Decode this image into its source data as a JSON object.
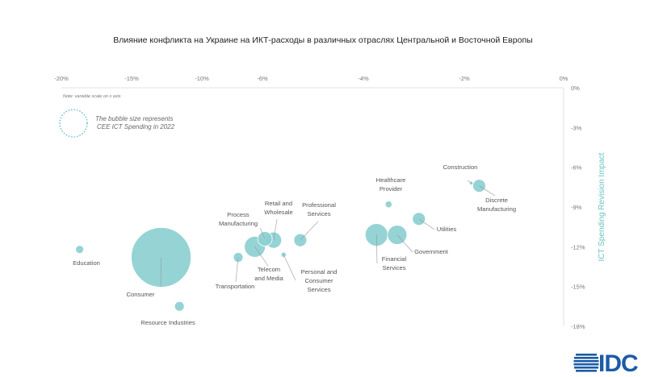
{
  "chart_data": {
    "type": "scatter",
    "subtype": "bubble",
    "title": "Влияние конфликта на Украине на ИКТ-расходы в различных отраслях Центральной и Восточной Европы",
    "ylabel": "ICT Spending Revision Impact",
    "xlabel": "",
    "note": "Note: variable scale on x axis",
    "legend_text": [
      "The bubble size represents",
      "CEE ICT Spending in 2022"
    ],
    "x_scale": "piecewise (variable)",
    "x_ticks": [
      -20,
      -15,
      -10,
      -6,
      -4,
      -2,
      0
    ],
    "x_tick_labels": [
      "-20%",
      "-15%",
      "-10%",
      "-6%",
      "-4%",
      "-2%",
      "0%"
    ],
    "y_ticks": [
      0,
      -3,
      -6,
      -9,
      -12,
      -15,
      -18
    ],
    "y_tick_labels": [
      "0%",
      "-3%",
      "-6%",
      "-9%",
      "-12%",
      "-15%",
      "-18%"
    ],
    "xlim": [
      -20,
      0
    ],
    "ylim": [
      -18,
      0
    ],
    "grid": false,
    "bubble_color": "#8ccfd1",
    "points": [
      {
        "label": [
          "Education"
        ],
        "x": -18.7,
        "y": -12.2,
        "size": 25
      },
      {
        "label": [
          "Consumer"
        ],
        "x": -12.9,
        "y": -12.8,
        "size": 1370
      },
      {
        "label": [
          "Resource Industries"
        ],
        "x": -11.6,
        "y": -16.5,
        "size": 36
      },
      {
        "label": [
          "Transportation"
        ],
        "x": -7.6,
        "y": -12.8,
        "size": 36
      },
      {
        "label": [
          "Telecom",
          "and Media"
        ],
        "x": -6.5,
        "y": -12.0,
        "size": 169
      },
      {
        "label": [
          "Process",
          "Manufacturing"
        ],
        "x": -5.95,
        "y": -11.4,
        "size": 81
      },
      {
        "label": [
          "Retail and",
          "Wholesale"
        ],
        "x": -5.78,
        "y": -11.5,
        "size": 100
      },
      {
        "label": [
          "Personal and",
          "Consumer",
          "Services"
        ],
        "x": -5.58,
        "y": -12.6,
        "size": 9
      },
      {
        "label": [
          "Professional",
          "Services"
        ],
        "x": -5.25,
        "y": -11.5,
        "size": 64
      },
      {
        "label": [
          "Financial",
          "Services"
        ],
        "x": -3.74,
        "y": -11.1,
        "size": 196
      },
      {
        "label": [
          "Government"
        ],
        "x": -3.33,
        "y": -11.1,
        "size": 144
      },
      {
        "label": [
          "Healthcare",
          "Provider"
        ],
        "x": -3.5,
        "y": -8.8,
        "size": 16
      },
      {
        "label": [
          "Utilities"
        ],
        "x": -2.9,
        "y": -9.9,
        "size": 64
      },
      {
        "label": [
          "Construction"
        ],
        "x": -1.86,
        "y": -7.2,
        "size": 4
      },
      {
        "label": [
          "Discrete",
          "Manufacturing"
        ],
        "x": -1.7,
        "y": -7.4,
        "size": 64
      }
    ]
  },
  "logo": {
    "text": "IDC",
    "color": "#1c5ca6"
  }
}
